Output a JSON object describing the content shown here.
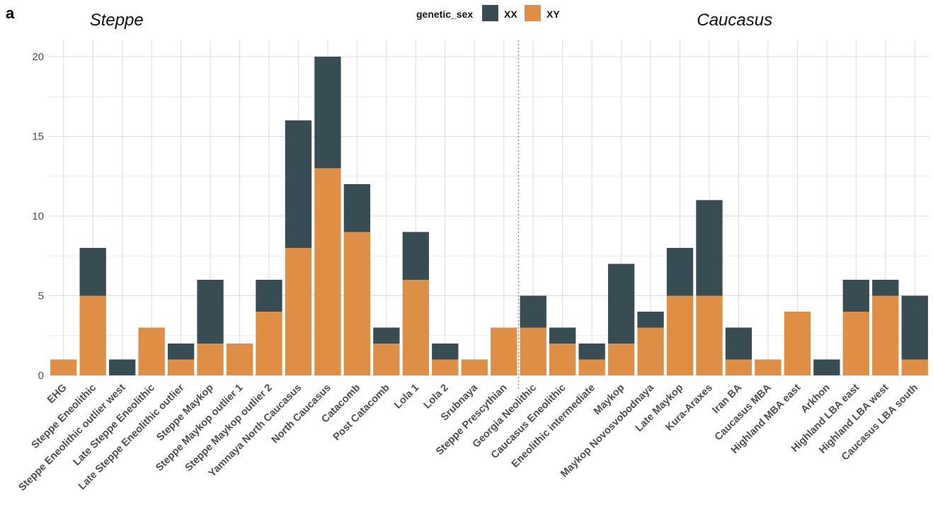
{
  "panel_label": "a",
  "colors": {
    "XX": "#374d53",
    "XY": "#de8f45",
    "grid": "#dcdcdc",
    "divider": "#7f7f7f"
  },
  "chart_data": {
    "type": "bar",
    "stacked": true,
    "categories": [
      "EHG",
      "Steppe Eneolithic",
      "Steppe Eneolithic outlier west",
      "Late Steppe Eneolithic",
      "Late Steppe Eneolithic outlier",
      "Steppe Maykop",
      "Steppe Maykop outlier 1",
      "Steppe Maykop outlier 2",
      "Yamnaya North Caucasus",
      "North Caucasus",
      "Catacomb",
      "Post Catacomb",
      "Lola 1",
      "Lola 2",
      "Srubnaya",
      "Steppe Prescythian",
      "Georgia Neolithic",
      "Caucasus Eneolithic",
      "Eneolithic intermediate",
      "Maykop",
      "Maykop Novosvobodnaya",
      "Late Maykop",
      "Kura-Araxes",
      "Iran BA",
      "Caucasus MBA",
      "Highland MBA east",
      "Arkhon",
      "Highland LBA east",
      "Highland LBA west",
      "Caucasus LBA south"
    ],
    "series": [
      {
        "name": "XY",
        "values": [
          1,
          5,
          0,
          3,
          1,
          2,
          2,
          4,
          8,
          13,
          9,
          2,
          6,
          1,
          1,
          3,
          3,
          2,
          1,
          2,
          3,
          5,
          5,
          1,
          1,
          4,
          0,
          4,
          5,
          1
        ]
      },
      {
        "name": "XX",
        "values": [
          0,
          3,
          1,
          0,
          1,
          4,
          0,
          2,
          8,
          7,
          3,
          1,
          3,
          1,
          0,
          0,
          2,
          1,
          1,
          5,
          1,
          3,
          6,
          2,
          0,
          0,
          1,
          2,
          1,
          4
        ]
      }
    ],
    "legend_title": "genetic_sex",
    "legend_entries": [
      "XX",
      "XY"
    ],
    "legend_position": "top",
    "groups": [
      {
        "title": "Steppe",
        "categories": 16
      },
      {
        "title": "Caucasus",
        "categories": 14
      }
    ],
    "y_ticks": [
      "0",
      "5",
      "10",
      "15",
      "20"
    ],
    "y_tick_values": [
      0,
      5,
      10,
      15,
      20
    ],
    "ylim": [
      0,
      20
    ],
    "grid": true,
    "xlabel": "",
    "ylabel": ""
  }
}
